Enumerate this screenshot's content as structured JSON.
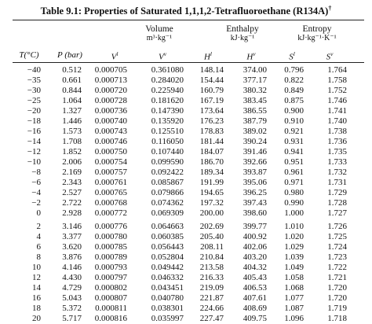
{
  "table": {
    "title": "Table 9.1: Properties of Saturated 1,1,1,2-Tetrafluoroethane (R134A)",
    "title_mark": "†",
    "groups": [
      {
        "name": "Volume",
        "unit": "m³·kg⁻¹"
      },
      {
        "name": "Enthalpy",
        "unit": "kJ·kg⁻¹"
      },
      {
        "name": "Entropy",
        "unit": "kJ·kg⁻¹·K⁻¹"
      }
    ],
    "columns": [
      {
        "base": "T(°C)",
        "sup": ""
      },
      {
        "base": "P (bar)",
        "sup": ""
      },
      {
        "base": "V",
        "sup": "l"
      },
      {
        "base": "V",
        "sup": "v"
      },
      {
        "base": "H",
        "sup": "l"
      },
      {
        "base": "H",
        "sup": "v"
      },
      {
        "base": "S",
        "sup": "l"
      },
      {
        "base": "S",
        "sup": "v"
      }
    ],
    "blocks": [
      [
        [
          "−40",
          "0.512",
          "0.000705",
          "0.361080",
          "148.14",
          "374.00",
          "0.796",
          "1.764"
        ],
        [
          "−35",
          "0.661",
          "0.000713",
          "0.284020",
          "154.44",
          "377.17",
          "0.822",
          "1.758"
        ],
        [
          "−30",
          "0.844",
          "0.000720",
          "0.225940",
          "160.79",
          "380.32",
          "0.849",
          "1.752"
        ],
        [
          "−25",
          "1.064",
          "0.000728",
          "0.181620",
          "167.19",
          "383.45",
          "0.875",
          "1.746"
        ],
        [
          "−20",
          "1.327",
          "0.000736",
          "0.147390",
          "173.64",
          "386.55",
          "0.900",
          "1.741"
        ]
      ],
      [
        [
          "−18",
          "1.446",
          "0.000740",
          "0.135920",
          "176.23",
          "387.79",
          "0.910",
          "1.740"
        ],
        [
          "−16",
          "1.573",
          "0.000743",
          "0.125510",
          "178.83",
          "389.02",
          "0.921",
          "1.738"
        ],
        [
          "−14",
          "1.708",
          "0.000746",
          "0.116050",
          "181.44",
          "390.24",
          "0.931",
          "1.736"
        ],
        [
          "−12",
          "1.852",
          "0.000750",
          "0.107440",
          "184.07",
          "391.46",
          "0.941",
          "1.735"
        ],
        [
          "−10",
          "2.006",
          "0.000754",
          "0.099590",
          "186.70",
          "392.66",
          "0.951",
          "1.733"
        ]
      ],
      [
        [
          "−8",
          "2.169",
          "0.000757",
          "0.092422",
          "189.34",
          "393.87",
          "0.961",
          "1.732"
        ],
        [
          "−6",
          "2.343",
          "0.000761",
          "0.085867",
          "191.99",
          "395.06",
          "0.971",
          "1.731"
        ],
        [
          "−4",
          "2.527",
          "0.000765",
          "0.079866",
          "194.65",
          "396.25",
          "0.980",
          "1.729"
        ],
        [
          "−2",
          "2.722",
          "0.000768",
          "0.074362",
          "197.32",
          "397.43",
          "0.990",
          "1.728"
        ],
        [
          "0",
          "2.928",
          "0.000772",
          "0.069309",
          "200.00",
          "398.60",
          "1.000",
          "1.727"
        ]
      ],
      [
        [
          "2",
          "3.146",
          "0.000776",
          "0.064663",
          "202.69",
          "399.77",
          "1.010",
          "1.726"
        ],
        [
          "4",
          "3.377",
          "0.000780",
          "0.060385",
          "205.40",
          "400.92",
          "1.020",
          "1.725"
        ],
        [
          "6",
          "3.620",
          "0.000785",
          "0.056443",
          "208.11",
          "402.06",
          "1.029",
          "1.724"
        ],
        [
          "8",
          "3.876",
          "0.000789",
          "0.052804",
          "210.84",
          "403.20",
          "1.039",
          "1.723"
        ],
        [
          "10",
          "4.146",
          "0.000793",
          "0.049442",
          "213.58",
          "404.32",
          "1.049",
          "1.722"
        ]
      ],
      [
        [
          "12",
          "4.430",
          "0.000797",
          "0.046332",
          "216.33",
          "405.43",
          "1.058",
          "1.721"
        ],
        [
          "14",
          "4.729",
          "0.000802",
          "0.043451",
          "219.09",
          "406.53",
          "1.068",
          "1.720"
        ],
        [
          "16",
          "5.043",
          "0.000807",
          "0.040780",
          "221.87",
          "407.61",
          "1.077",
          "1.720"
        ],
        [
          "18",
          "5.372",
          "0.000811",
          "0.038301",
          "224.66",
          "408.69",
          "1.087",
          "1.719"
        ],
        [
          "20",
          "5.717",
          "0.000816",
          "0.035997",
          "227.47",
          "409.75",
          "1.096",
          "1.718"
        ]
      ]
    ]
  }
}
